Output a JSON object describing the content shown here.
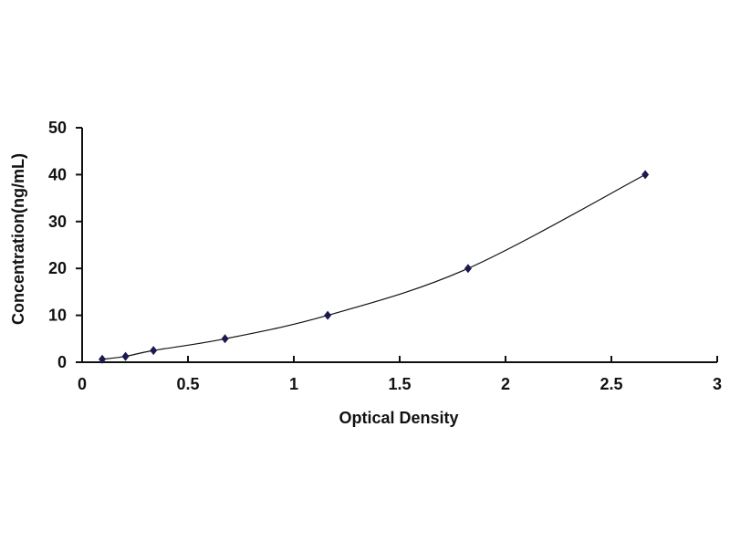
{
  "chart_data": {
    "type": "line",
    "title": "",
    "xlabel": "Optical Density",
    "ylabel": "Concentration(ng/mL)",
    "xlim": [
      0,
      3
    ],
    "ylim": [
      0,
      50
    ],
    "x_ticks": [
      "0",
      "0.5",
      "1",
      "1.5",
      "2",
      "2.5",
      "3"
    ],
    "y_ticks": [
      "0",
      "10",
      "20",
      "30",
      "40",
      "50"
    ],
    "grid": false,
    "legend": "none",
    "marker": "diamond",
    "series": [
      {
        "x": [
          0.095,
          0.205,
          0.337,
          0.675,
          1.16,
          1.823,
          2.66
        ],
        "y": [
          0.625,
          1.25,
          2.5,
          5,
          10,
          20,
          40
        ],
        "color": "#1a1a4e",
        "smoothed": true
      }
    ]
  }
}
